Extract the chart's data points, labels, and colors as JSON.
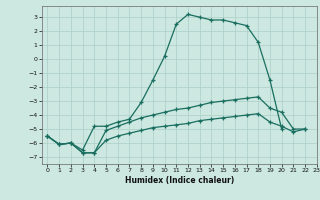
{
  "xlabel": "Humidex (Indice chaleur)",
  "bg_color": "#cce8e0",
  "grid_color": "#aacfc8",
  "line_color": "#1a6e60",
  "xlim": [
    -0.5,
    23
  ],
  "ylim": [
    -7.5,
    3.8
  ],
  "yticks": [
    -7,
    -6,
    -5,
    -4,
    -3,
    -2,
    -1,
    0,
    1,
    2,
    3
  ],
  "xticks": [
    0,
    1,
    2,
    3,
    4,
    5,
    6,
    7,
    8,
    9,
    10,
    11,
    12,
    13,
    14,
    15,
    16,
    17,
    18,
    19,
    20,
    21,
    22,
    23
  ],
  "s1x": [
    0,
    1,
    2,
    3,
    4,
    5,
    6,
    7,
    8,
    9,
    10,
    11,
    12,
    13,
    14,
    15,
    16,
    17,
    18,
    19,
    20
  ],
  "s1y": [
    -5.5,
    -6.1,
    -6.0,
    -6.5,
    -4.8,
    -4.8,
    -4.5,
    -4.3,
    -3.1,
    -1.5,
    0.2,
    2.5,
    3.2,
    3.0,
    2.8,
    2.8,
    2.6,
    2.4,
    1.2,
    -1.5,
    -5.0
  ],
  "s2x": [
    0,
    1,
    2,
    3,
    4,
    5,
    6,
    7,
    8,
    9,
    10,
    11,
    12,
    13,
    14,
    15,
    16,
    17,
    18,
    19,
    20,
    21,
    22
  ],
  "s2y": [
    -5.5,
    -6.1,
    -6.0,
    -6.7,
    -6.7,
    -5.1,
    -4.8,
    -4.5,
    -4.2,
    -4.0,
    -3.8,
    -3.6,
    -3.5,
    -3.3,
    -3.1,
    -3.0,
    -2.9,
    -2.8,
    -2.7,
    -3.5,
    -3.8,
    -5.0,
    -5.0
  ],
  "s3x": [
    0,
    1,
    2,
    3,
    4,
    5,
    6,
    7,
    8,
    9,
    10,
    11,
    12,
    13,
    14,
    15,
    16,
    17,
    18,
    19,
    20,
    21,
    22
  ],
  "s3y": [
    -5.5,
    -6.1,
    -6.0,
    -6.7,
    -6.7,
    -5.8,
    -5.5,
    -5.3,
    -5.1,
    -4.9,
    -4.8,
    -4.7,
    -4.6,
    -4.4,
    -4.3,
    -4.2,
    -4.1,
    -4.0,
    -3.9,
    -4.5,
    -4.8,
    -5.2,
    -5.0
  ]
}
